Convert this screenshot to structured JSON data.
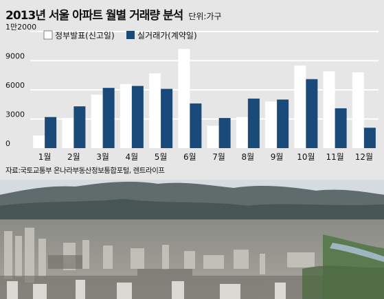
{
  "title": "2013년 서울 아파트 월별 거래량 분석",
  "unit": "단위:가구",
  "source": "자료:국토교통부 온나라부동산정보통합포털, 렌트라이프",
  "colors": {
    "declared": "#ffffff",
    "actual": "#1a4a7a",
    "gridline": "#ffffff",
    "panel": "#e6e6e6"
  },
  "chart_data": {
    "type": "bar",
    "categories": [
      "1월",
      "2월",
      "3월",
      "4월",
      "5월",
      "6월",
      "7월",
      "8월",
      "9월",
      "10월",
      "11월",
      "12월"
    ],
    "series": [
      {
        "name": "정부발표(신고일)",
        "values": [
          1300,
          3100,
          5500,
          6600,
          7700,
          10200,
          2300,
          3200,
          4800,
          8500,
          7900,
          7800
        ]
      },
      {
        "name": "실거래가(계약일)",
        "values": [
          3200,
          4300,
          6200,
          6400,
          6100,
          4600,
          3100,
          5100,
          5000,
          7100,
          4100,
          2100
        ]
      }
    ],
    "yticks": [
      "0",
      "3000",
      "6000",
      "9000",
      "1만2000"
    ],
    "ytick_values": [
      0,
      3000,
      6000,
      9000,
      12000
    ],
    "ylim": [
      0,
      12000
    ],
    "legend": "top-left",
    "grid": true
  }
}
